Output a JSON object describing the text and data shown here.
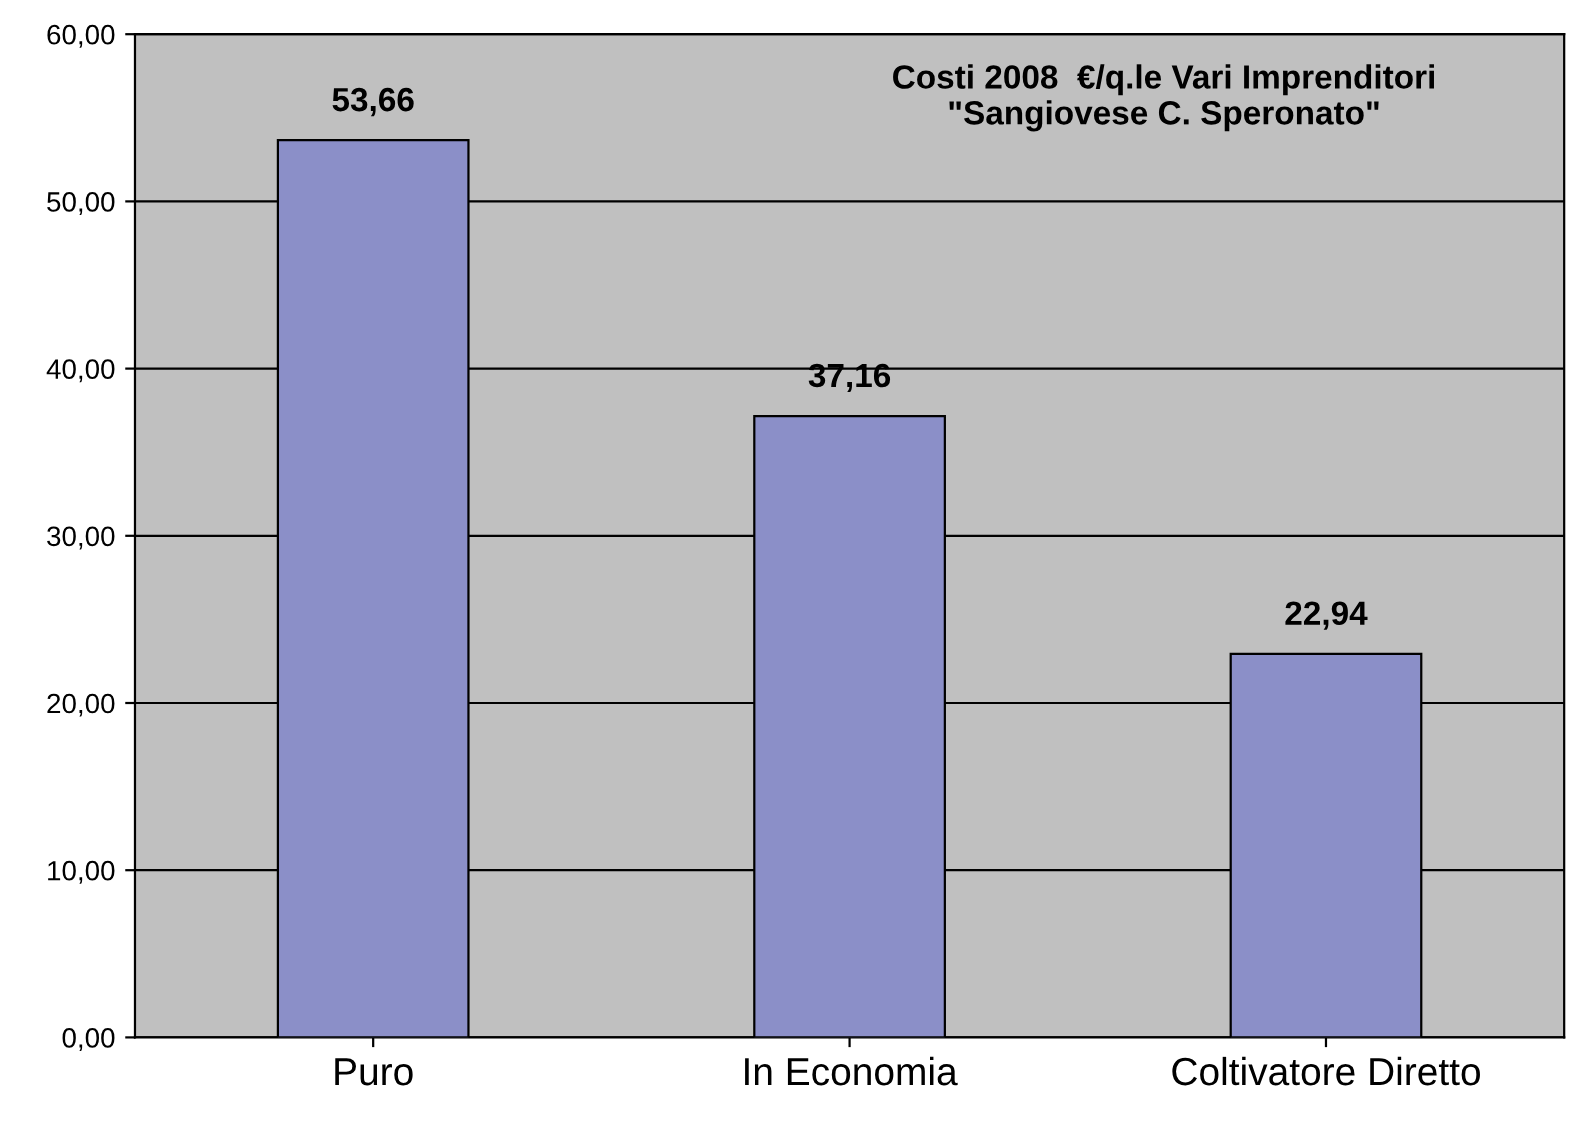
{
  "chart_data": {
    "type": "bar",
    "title": "Costi 2008  €/q.le Vari Imprenditori\n\"Sangiovese C. Speronato\"",
    "categories": [
      "Puro",
      "In Economia",
      "Coltivatore Diretto"
    ],
    "values": [
      53.66,
      37.16,
      22.94
    ],
    "color": "#8b8fc8",
    "value_labels": [
      "53,66",
      "37,16",
      "22,94"
    ],
    "ylim": [
      0,
      60
    ],
    "yticks": [
      {
        "value": 0,
        "label": "0,00"
      },
      {
        "value": 10,
        "label": "10,00"
      },
      {
        "value": 20,
        "label": "20,00"
      },
      {
        "value": 30,
        "label": "30,00"
      },
      {
        "value": 40,
        "label": "40,00"
      },
      {
        "value": 50,
        "label": "50,00"
      },
      {
        "value": 60,
        "label": "60,00"
      }
    ],
    "grid": "y",
    "legend": false
  }
}
